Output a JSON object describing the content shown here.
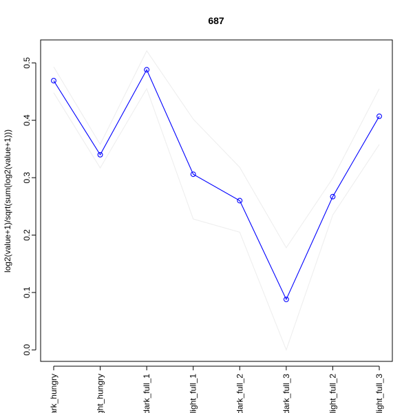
{
  "chart_data": {
    "type": "line",
    "title": "687",
    "xlabel": "",
    "ylabel": "log2(value+1)/sqrt(sum(log2(value+1)))",
    "categories": [
      "dark_hungry",
      "light_hungry",
      "dark_full_1",
      "light_full_1",
      "dark_full_2",
      "dark_full_3",
      "light_full_2",
      "light_full_3"
    ],
    "category_labels_visible": [
      "ark_hungry",
      "ght_hungry",
      "dark_full_1",
      "light_full_1",
      "dark_full_2",
      "dark_full_3",
      "light_full_2",
      "light_full_3"
    ],
    "ylim": [
      -0.02,
      0.54
    ],
    "yticks": [
      0.0,
      0.1,
      0.2,
      0.3,
      0.4,
      0.5
    ],
    "ytick_labels": [
      "0.0",
      "0.1",
      "0.2",
      "0.3",
      "0.4",
      "0.5"
    ],
    "series": [
      {
        "color": "#0000ff",
        "markers": "open-circle",
        "values": [
          0.469,
          0.34,
          0.488,
          0.306,
          0.26,
          0.088,
          0.267,
          0.407
        ]
      },
      {
        "color": "#eeeeee",
        "values": [
          0.493,
          0.358,
          0.521,
          0.402,
          0.318,
          0.178,
          0.299,
          0.455
        ]
      },
      {
        "color": "#eeeeee",
        "values": [
          0.448,
          0.317,
          0.455,
          0.228,
          0.205,
          0.0,
          0.235,
          0.358
        ]
      }
    ],
    "grid": false,
    "legend": "none"
  }
}
